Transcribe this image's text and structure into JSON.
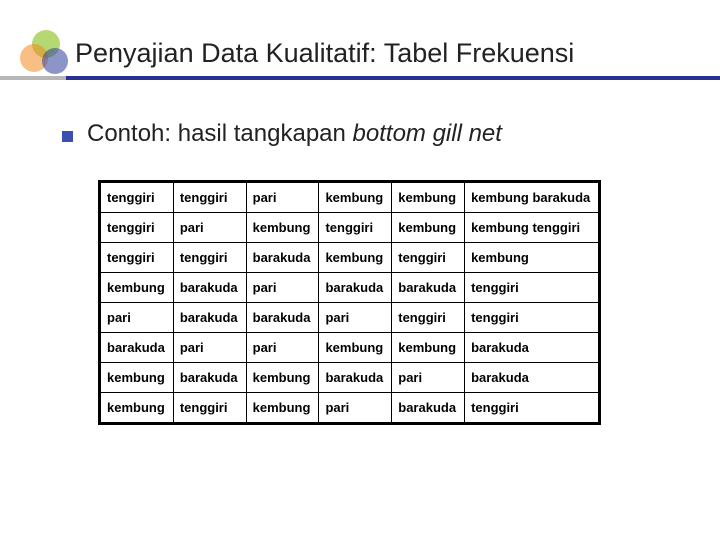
{
  "accent_underline_color": "#2b2f8f",
  "logo": {
    "green": "#7ab800",
    "orange": "#f08a1d",
    "blue": "#2b3e9b"
  },
  "title": "Penyajian Data Kualitatif: Tabel Frekuensi",
  "bullet_square_color": "#3c4fb0",
  "subtitle_prefix": "Contoh: hasil tangkapan ",
  "subtitle_italic": "bottom gill net",
  "table": {
    "columns": 6,
    "cell_font_size": 13,
    "border_color": "#000000",
    "rows": [
      [
        "tenggiri",
        "tenggiri",
        "pari",
        "kembung",
        "kembung",
        "kembung barakuda"
      ],
      [
        "tenggiri",
        "pari",
        "kembung",
        "tenggiri",
        "kembung",
        "kembung tenggiri"
      ],
      [
        "tenggiri",
        "tenggiri",
        "barakuda",
        "kembung",
        "tenggiri",
        "kembung"
      ],
      [
        "kembung",
        "barakuda",
        "pari",
        "barakuda",
        "barakuda",
        "tenggiri"
      ],
      [
        "pari",
        "barakuda",
        "barakuda",
        "pari",
        "tenggiri",
        "tenggiri"
      ],
      [
        "barakuda",
        "pari",
        "pari",
        "kembung",
        "kembung",
        "barakuda"
      ],
      [
        "kembung",
        "barakuda",
        "kembung",
        "barakuda",
        "pari",
        "barakuda"
      ],
      [
        "kembung",
        "tenggiri",
        "kembung",
        "pari",
        "barakuda",
        "tenggiri"
      ]
    ]
  }
}
